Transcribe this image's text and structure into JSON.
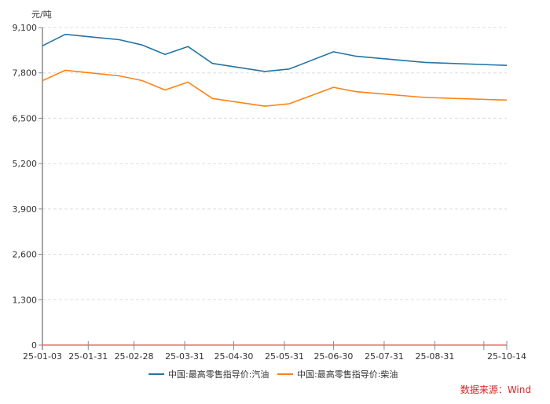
{
  "unit_label": "元/吨",
  "source_label": "数据来源：Wind",
  "colors": {
    "series_gasoline": "#2274a5",
    "series_diesel": "#ff8214",
    "baseline": "#e87070",
    "axis": "#888888",
    "grid": "#dddddd"
  },
  "legend": [
    {
      "label": "中国:最高零售指导价:汽油",
      "color": "#2274a5"
    },
    {
      "label": "中国:最高零售指导价:柴油",
      "color": "#ff8214"
    }
  ],
  "chart_data": {
    "type": "line",
    "title": "",
    "xlabel": "",
    "ylabel": "元/吨",
    "ylim": [
      0,
      9100
    ],
    "yticks": [
      0,
      1300,
      2600,
      3900,
      5200,
      6500,
      7800,
      9100
    ],
    "ytick_labels": [
      "0",
      "1,300",
      "2,600",
      "3,900",
      "5,200",
      "6,500",
      "7,800",
      "9,100"
    ],
    "xtick_labels": [
      "25-01-03",
      "25-01-31",
      "25-02-28",
      "25-03-31",
      "25-04-30",
      "25-05-31",
      "25-06-30",
      "25-07-31",
      "25-08-31",
      "",
      "25-10-14"
    ],
    "xtick_dates": [
      "2025-01-03",
      "2025-01-31",
      "2025-02-28",
      "2025-03-31",
      "2025-04-30",
      "2025-05-31",
      "2025-06-30",
      "2025-07-31",
      "2025-08-31",
      "2025-09-30",
      "2025-10-14"
    ],
    "grid": "horizontal dashed",
    "legend_position": "bottom",
    "x": [
      "2025-01-03",
      "2025-01-17",
      "2025-02-19",
      "2025-03-05",
      "2025-03-19",
      "2025-04-02",
      "2025-04-17",
      "2025-05-19",
      "2025-06-03",
      "2025-06-30",
      "2025-07-14",
      "2025-08-25",
      "2025-10-14"
    ],
    "series": [
      {
        "name": "中国:最高零售指导价:汽油",
        "values": [
          8575,
          8905,
          8750,
          8600,
          8330,
          8555,
          8070,
          7840,
          7910,
          8405,
          8275,
          8100,
          8015
        ]
      },
      {
        "name": "中国:最高零售指导价:柴油",
        "values": [
          7575,
          7875,
          7715,
          7580,
          7310,
          7535,
          7065,
          6845,
          6915,
          7385,
          7260,
          7095,
          7020
        ]
      }
    ]
  }
}
